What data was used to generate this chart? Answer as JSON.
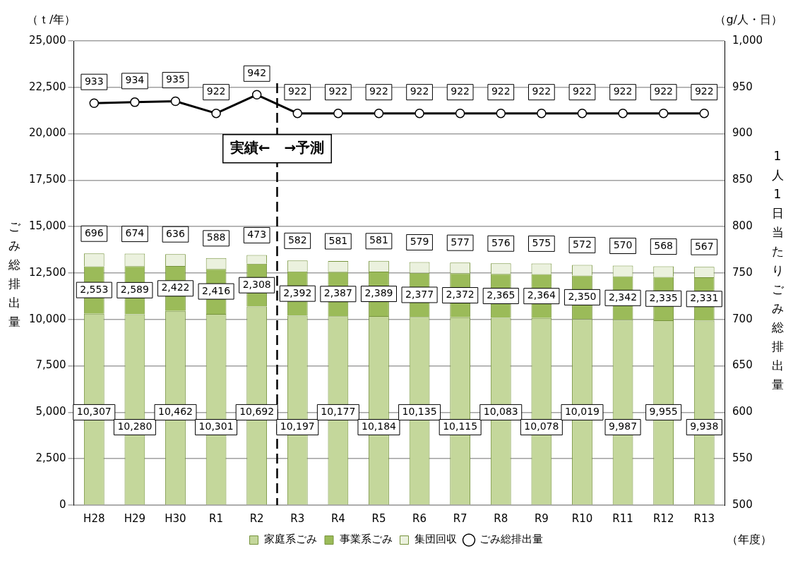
{
  "chart_data": {
    "type": "bar",
    "stacked": true,
    "categories": [
      "H28",
      "H29",
      "H30",
      "R1",
      "R2",
      "R3",
      "R4",
      "R5",
      "R6",
      "R7",
      "R8",
      "R9",
      "R10",
      "R11",
      "R12",
      "R13"
    ],
    "series": [
      {
        "name": "家庭系ごみ",
        "color": "#c4d79b",
        "values": [
          10307,
          10280,
          10462,
          10301,
          10692,
          10197,
          10177,
          10184,
          10135,
          10115,
          10083,
          10078,
          10019,
          9987,
          9955,
          9938
        ],
        "value_labels": [
          "10,307",
          "10,280",
          "10,462",
          "10,301",
          "10,692",
          "10,197",
          "10,177",
          "10,184",
          "10,135",
          "10,115",
          "10,083",
          "10,078",
          "10,019",
          "9,987",
          "9,955",
          "9,938"
        ]
      },
      {
        "name": "事業系ごみ",
        "color": "#9bbb59",
        "values": [
          2553,
          2589,
          2422,
          2416,
          2308,
          2392,
          2387,
          2389,
          2377,
          2372,
          2365,
          2364,
          2350,
          2342,
          2335,
          2331
        ],
        "value_labels": [
          "2,553",
          "2,589",
          "2,422",
          "2,416",
          "2,308",
          "2,392",
          "2,387",
          "2,389",
          "2,377",
          "2,372",
          "2,365",
          "2,364",
          "2,350",
          "2,342",
          "2,335",
          "2,331"
        ]
      },
      {
        "name": "集団回収",
        "color": "#ebf1de",
        "values": [
          696,
          674,
          636,
          588,
          473,
          582,
          581,
          581,
          579,
          577,
          576,
          575,
          572,
          570,
          568,
          567
        ],
        "value_labels": [
          "696",
          "674",
          "636",
          "588",
          "473",
          "582",
          "581",
          "581",
          "579",
          "577",
          "576",
          "575",
          "572",
          "570",
          "568",
          "567"
        ]
      },
      {
        "name": "ごみ総排出量",
        "type": "line",
        "axis": "y2",
        "color": "#000000",
        "marker": "circle",
        "values": [
          933,
          934,
          935,
          922,
          942,
          922,
          922,
          922,
          922,
          922,
          922,
          922,
          922,
          922,
          922,
          922
        ],
        "value_labels": [
          "933",
          "934",
          "935",
          "922",
          "942",
          "922",
          "922",
          "922",
          "922",
          "922",
          "922",
          "922",
          "922",
          "922",
          "922",
          "922"
        ]
      }
    ],
    "ylabel": "ごみ総排出量",
    "y2label": "1人1日当たりごみ総排出量",
    "ylim": [
      0,
      25000
    ],
    "yticks": [
      0,
      {
        "value": 2500,
        "label": "2,500"
      },
      {
        "value": 5000,
        "label": "5,000"
      },
      {
        "value": 7500,
        "label": "7,500"
      },
      {
        "value": 10000,
        "label": "10,000"
      },
      {
        "value": 12500,
        "label": "12,500"
      },
      {
        "value": 15000,
        "label": "15,000"
      },
      {
        "value": 17500,
        "label": "17,500"
      },
      {
        "value": 20000,
        "label": "20,000"
      },
      {
        "value": 22500,
        "label": "22,500"
      },
      {
        "value": 25000,
        "label": "25,000"
      }
    ],
    "y2lim": [
      500,
      1000
    ],
    "y2ticks": [
      500,
      550,
      600,
      650,
      700,
      750,
      800,
      850,
      900,
      950,
      {
        "value": 1000,
        "label": "1,000"
      }
    ],
    "ref_lines": [
      {
        "axis": "x",
        "value": "R3",
        "label": "実績←　→予測",
        "line_style": "dashed",
        "color": "#000000"
      }
    ],
    "annotations": [
      "（ｔ/年）",
      "（g/人・日）",
      "（年度）"
    ],
    "grid": "y",
    "legend": "bottom"
  }
}
